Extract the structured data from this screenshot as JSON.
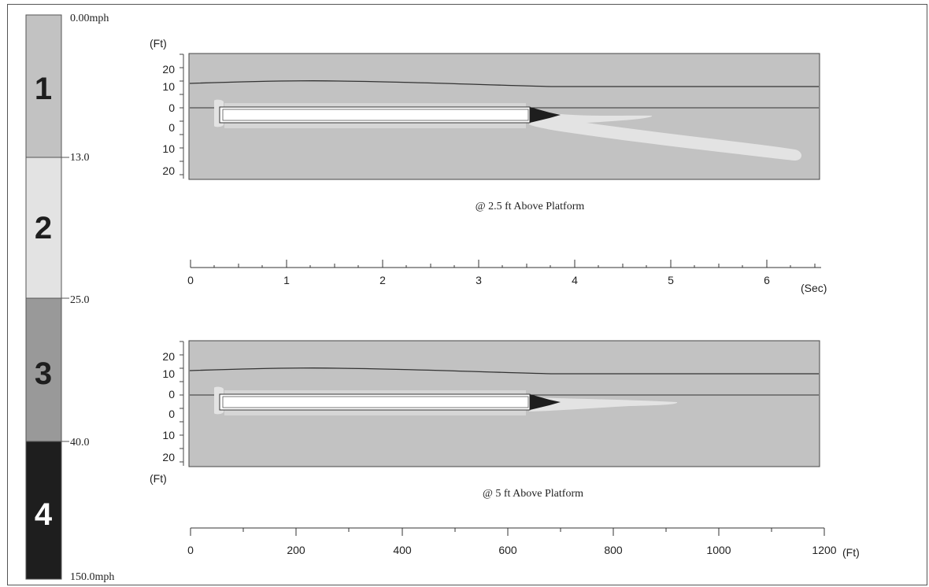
{
  "legend": {
    "bands": [
      {
        "label": "1",
        "color": "#c2c2c2",
        "label_color": "#1e1e1e"
      },
      {
        "label": "2",
        "color": "#e3e3e3",
        "label_color": "#1e1e1e"
      },
      {
        "label": "3",
        "color": "#999999",
        "label_color": "#1e1e1e"
      },
      {
        "label": "4",
        "color": "#1e1e1e",
        "label_color": "#ffffff"
      }
    ],
    "thresholds": [
      "0.00mph",
      "13.0",
      "25.0",
      "40.0",
      "150.0mph"
    ]
  },
  "panel_top": {
    "unit_label": "(Ft)",
    "y_ticks": [
      "20",
      "10",
      "0",
      "0",
      "10",
      "20"
    ],
    "caption": "@ 2.5 ft Above Platform"
  },
  "panel_bottom": {
    "unit_label": "(Ft)",
    "y_ticks": [
      "20",
      "10",
      "0",
      "0",
      "10",
      "20"
    ],
    "caption": "@ 5 ft Above Platform"
  },
  "time_axis": {
    "ticks": [
      "0",
      "1",
      "2",
      "3",
      "4",
      "5",
      "6"
    ],
    "unit": "(Sec)"
  },
  "distance_axis": {
    "ticks": [
      "0",
      "200",
      "400",
      "600",
      "800",
      "1000",
      "1200"
    ],
    "unit": "(Ft)"
  },
  "colors": {
    "panel_bg": "#c2c2c2",
    "wake": "#e3e3e3",
    "nose": "#1e1e1e",
    "line": "#333333"
  }
}
